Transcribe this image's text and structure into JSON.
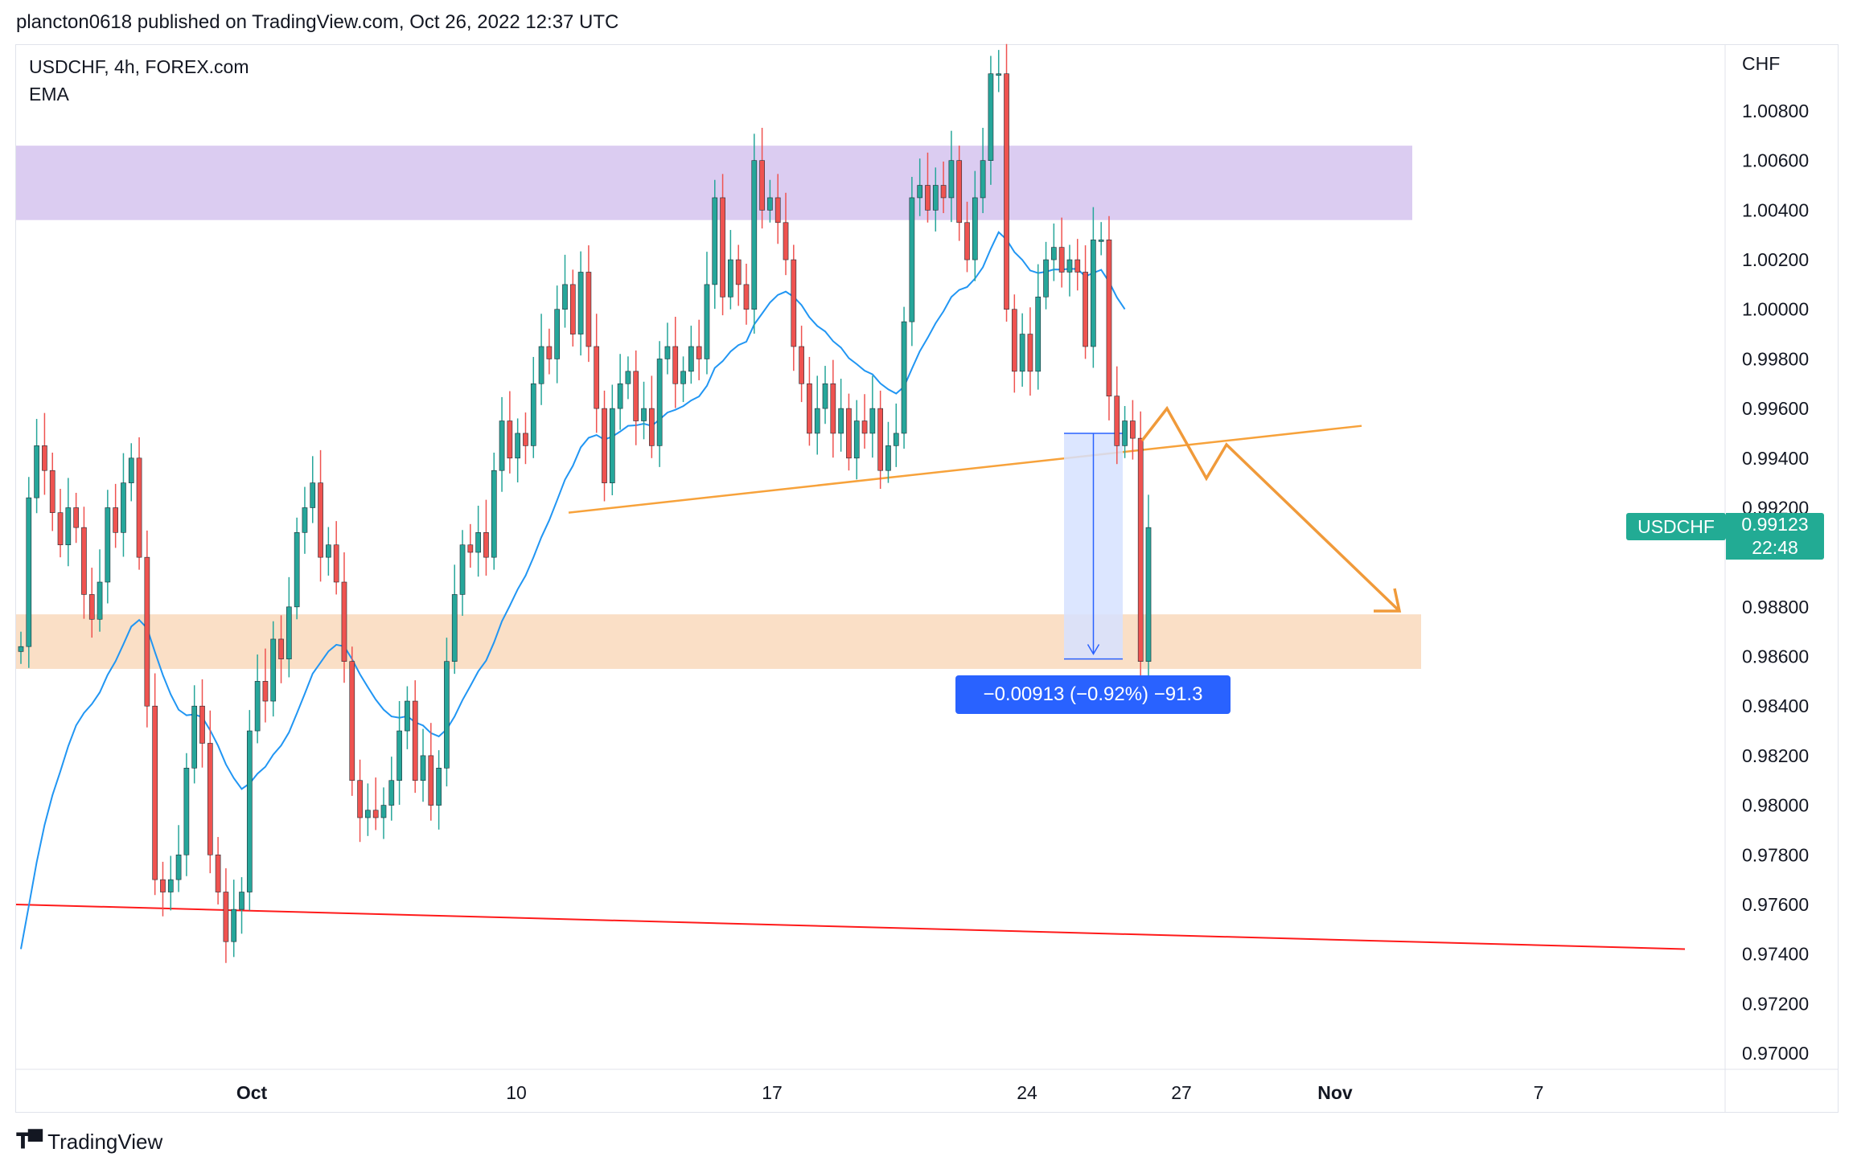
{
  "header": {
    "text": "plancton0618 published on TradingView.com, Oct 26, 2022 12:37 UTC"
  },
  "legend": {
    "symbol": "USDCHF, 4h, FOREX.com",
    "indicator": "EMA"
  },
  "axis": {
    "currency": "CHF"
  },
  "price_badge": {
    "symbol": "USDCHF",
    "price": "0.99123",
    "countdown": "22:48"
  },
  "measure": {
    "label": "−0.00913 (−0.92%) −91.3"
  },
  "footer": {
    "brand": "TradingView",
    "logo": "tradingview-logo-icon"
  },
  "colors": {
    "bull": "#26a69a",
    "bear": "#ef5350",
    "ema": "#2196f3",
    "resistance_zone": "#d7c7f0",
    "support_zone": "#f9dcc0",
    "trendline": "#f7a23b",
    "red_line": "#ff1a1a",
    "projection": "#f09a3a",
    "measure_fill": "#d6e2ff",
    "measure_line": "#2962ff"
  },
  "chart_data": {
    "type": "candlestick",
    "interval": "4h",
    "ylim": [
      0.969,
      1.01
    ],
    "y_ticks": [
      "1.00800",
      "1.00600",
      "1.00400",
      "1.00200",
      "1.00000",
      "0.99800",
      "0.99600",
      "0.99400",
      "0.99200",
      "0.98800",
      "0.98600",
      "0.98400",
      "0.98200",
      "0.98000",
      "0.97800",
      "0.97600",
      "0.97400",
      "0.97200",
      "0.97000"
    ],
    "x_ticks": [
      "Oct",
      "10",
      "17",
      "24",
      "27",
      "Nov",
      "7"
    ],
    "closes": [
      0.9864,
      0.9924,
      0.9945,
      0.9935,
      0.9918,
      0.9905,
      0.992,
      0.9912,
      0.9885,
      0.9875,
      0.989,
      0.992,
      0.991,
      0.993,
      0.994,
      0.99,
      0.984,
      0.977,
      0.9765,
      0.977,
      0.978,
      0.9815,
      0.984,
      0.9825,
      0.978,
      0.9765,
      0.9745,
      0.9758,
      0.9765,
      0.983,
      0.985,
      0.9842,
      0.9867,
      0.9859,
      0.988,
      0.991,
      0.992,
      0.993,
      0.99,
      0.9905,
      0.989,
      0.9858,
      0.981,
      0.9795,
      0.9798,
      0.9795,
      0.98,
      0.981,
      0.983,
      0.9842,
      0.981,
      0.982,
      0.98,
      0.9815,
      0.9858,
      0.9885,
      0.9905,
      0.9902,
      0.991,
      0.99,
      0.9935,
      0.9955,
      0.994,
      0.995,
      0.9945,
      0.997,
      0.9985,
      0.998,
      1.0,
      1.001,
      0.999,
      1.0015,
      0.9985,
      0.996,
      0.993,
      0.996,
      0.997,
      0.9975,
      0.9955,
      0.996,
      0.9945,
      0.998,
      0.9985,
      0.997,
      0.9975,
      0.9985,
      0.998,
      1.001,
      1.0045,
      1.0005,
      1.002,
      1.001,
      1.0,
      1.006,
      1.004,
      1.0045,
      1.0035,
      1.002,
      0.9985,
      0.997,
      0.995,
      0.996,
      0.997,
      0.995,
      0.996,
      0.994,
      0.9955,
      0.995,
      0.996,
      0.9935,
      0.9945,
      0.995,
      0.9995,
      1.0045,
      1.005,
      1.004,
      1.005,
      1.0045,
      1.006,
      1.0035,
      1.002,
      1.0045,
      1.006,
      1.0095,
      1.0095,
      1.0,
      0.9975,
      0.999,
      0.9975,
      1.0005,
      1.002,
      1.0025,
      1.0015,
      1.002,
      1.0015,
      0.9985,
      1.0028,
      1.0028,
      0.9965,
      0.9945,
      0.9955,
      0.9948,
      0.9858,
      0.9912
    ],
    "ema_label": "EMA",
    "zones": [
      {
        "name": "resistance",
        "from": 1.0036,
        "to": 1.0066
      },
      {
        "name": "support",
        "from": 0.9855,
        "to": 0.9877
      }
    ],
    "trendlines": [
      {
        "name": "rising-support",
        "from": [
          0.9918
        ],
        "to": [
          0.9953
        ]
      },
      {
        "name": "lower-support",
        "from": [
          0.976
        ],
        "to": [
          0.9742
        ]
      }
    ],
    "measure": {
      "from": 0.995,
      "to": 0.9859,
      "change": "−0.00913",
      "pct": "−0.92%",
      "pips": "−91.3"
    }
  }
}
